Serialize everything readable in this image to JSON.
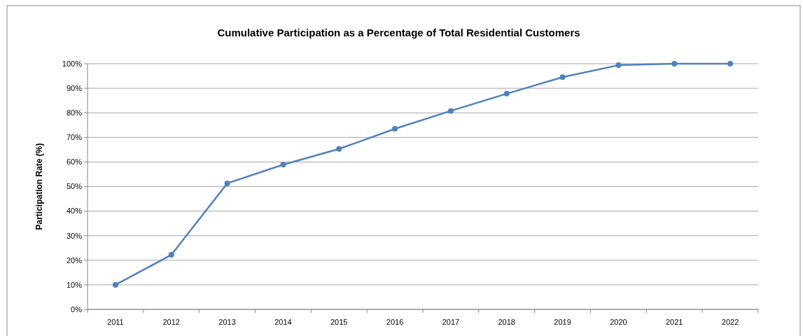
{
  "chart_data": {
    "type": "line",
    "title": "Cumulative Participation as a Percentage of Total Residential Customers",
    "ylabel": "Participation Rate (%)",
    "categories": [
      "2011",
      "2012",
      "2013",
      "2014",
      "2015",
      "2016",
      "2017",
      "2018",
      "2019",
      "2020",
      "2021",
      "2022"
    ],
    "series": [
      {
        "color": "#4f81bd",
        "values": [
          10,
          22.2,
          51.3,
          58.9,
          65.3,
          73.5,
          80.8,
          87.8,
          94.5,
          99.4,
          100,
          100
        ]
      }
    ],
    "ylim": [
      0,
      100
    ],
    "yticks": [
      {
        "value": 0,
        "label": "0%"
      },
      {
        "value": 10,
        "label": "10%"
      },
      {
        "value": 20,
        "label": "20%"
      },
      {
        "value": 30,
        "label": "30%"
      },
      {
        "value": 40,
        "label": "40%"
      },
      {
        "value": 50,
        "label": "50%"
      },
      {
        "value": 60,
        "label": "60%"
      },
      {
        "value": 70,
        "label": "70%"
      },
      {
        "value": 80,
        "label": "80%"
      },
      {
        "value": 90,
        "label": "90%"
      },
      {
        "value": 100,
        "label": "100%"
      }
    ],
    "grid": "y",
    "marker": "circle",
    "line_style": "solid"
  }
}
